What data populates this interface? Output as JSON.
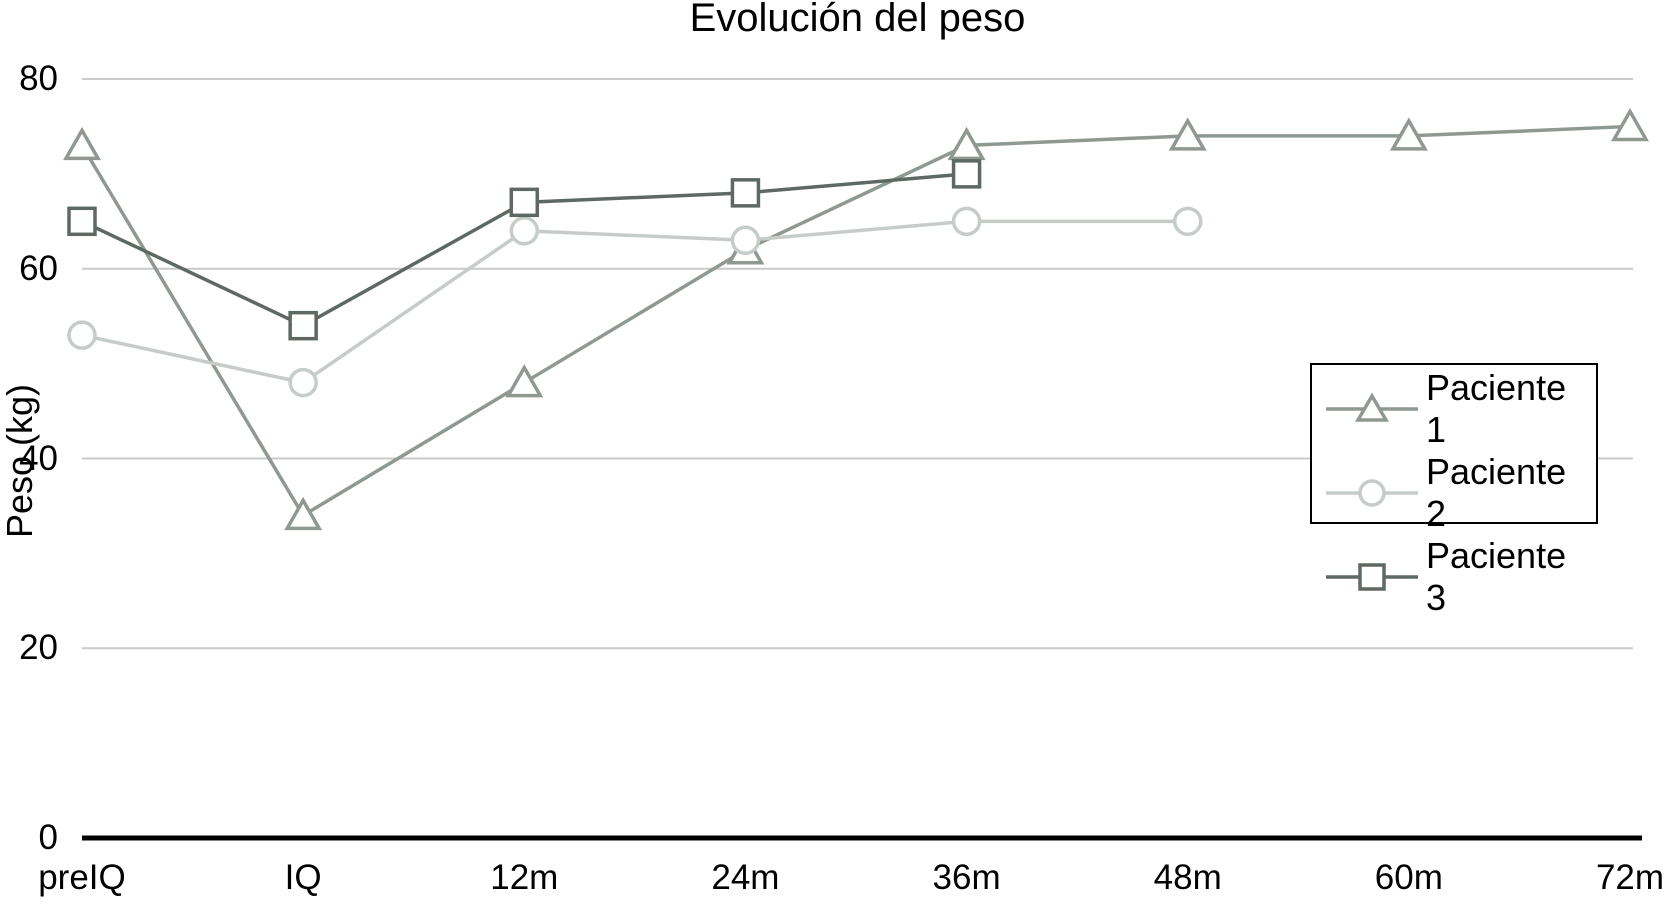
{
  "chart_data": {
    "type": "line",
    "title": "Evolución del peso",
    "ylabel": "Peso (kg)",
    "xlabel": "",
    "categories": [
      "preIQ",
      "IQ",
      "12m",
      "24m",
      "36m",
      "48m",
      "60m",
      "72m"
    ],
    "series": [
      {
        "name": "Paciente 1",
        "marker": "triangle",
        "color": "#8f9992",
        "values": [
          73,
          34,
          48,
          62,
          73,
          74,
          74,
          75
        ]
      },
      {
        "name": "Paciente 2",
        "marker": "circle",
        "color": "#c6ccc8",
        "values": [
          53,
          48,
          64,
          63,
          65,
          65,
          null,
          null
        ]
      },
      {
        "name": "Paciente 3",
        "marker": "square",
        "color": "#5f6963",
        "values": [
          65,
          54,
          67,
          68,
          70,
          null,
          null,
          null
        ]
      }
    ],
    "ylim": [
      0,
      80
    ],
    "yticks": [
      0,
      20,
      40,
      60,
      80
    ],
    "grid": "horizontal-only",
    "legend_position": "middle-right",
    "colors": {
      "gridline": "#c9c9c9",
      "axis": "#000000",
      "text": "#000000",
      "background": "#ffffff",
      "marker_fill": "#ffffff"
    }
  }
}
